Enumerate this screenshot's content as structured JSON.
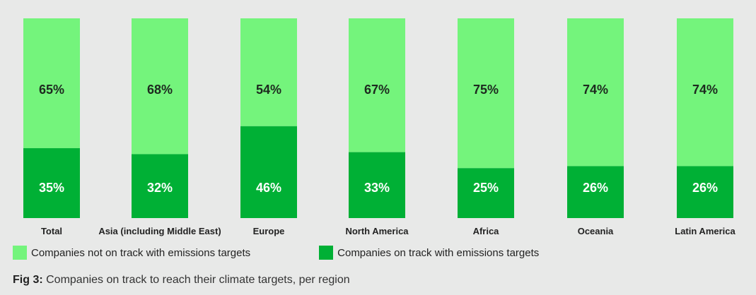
{
  "chart_data": {
    "type": "bar",
    "stacked": true,
    "orientation": "vertical",
    "categories": [
      "Total",
      "Asia (including Middle East)",
      "Europe",
      "North America",
      "Africa",
      "Oceania",
      "Latin America"
    ],
    "series": [
      {
        "name": "Companies on track with emissions targets",
        "values": [
          35,
          32,
          46,
          33,
          25,
          26,
          26
        ],
        "labels": [
          "35%",
          "32%",
          "46%",
          "33%",
          "25%",
          "26%",
          "26%"
        ],
        "color": "#00b035"
      },
      {
        "name": "Companies not on track with emissions targets",
        "values": [
          65,
          68,
          54,
          67,
          75,
          74,
          74
        ],
        "labels": [
          "65%",
          "68%",
          "54%",
          "67%",
          "75%",
          "74%",
          "74%"
        ],
        "color": "#74f47c"
      }
    ],
    "ylim": [
      0,
      100
    ],
    "grid": false,
    "legend_position": "bottom-left"
  },
  "legend": {
    "not_on_track_label": "Companies not on track with emissions targets",
    "on_track_label": "Companies on track with emissions targets",
    "not_on_track_color": "#74f47c",
    "on_track_color": "#00b035"
  },
  "caption": {
    "fig_label": "Fig 3:",
    "text": " Companies on track to reach their climate targets, per region"
  }
}
